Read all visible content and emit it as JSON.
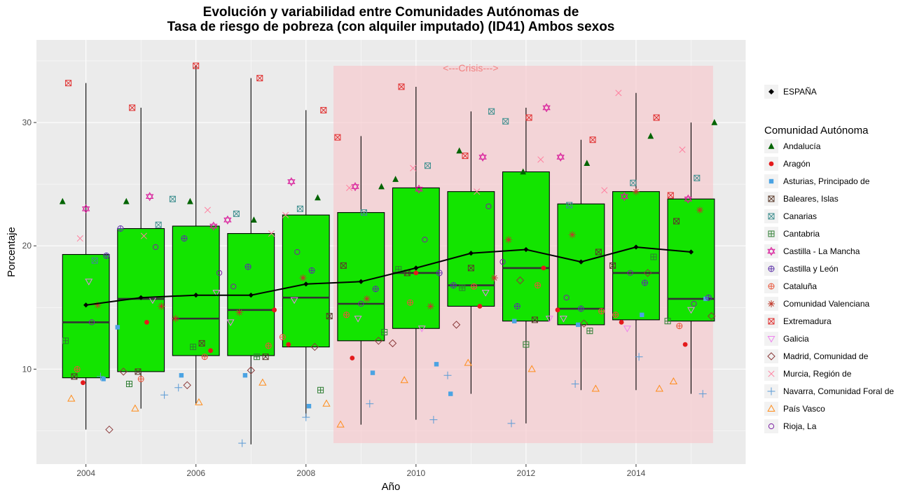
{
  "colors": {
    "panel_bg": "#ebebeb",
    "grid": "#ffffff",
    "box_fill": "#13e400",
    "crisis_fill": "#f8c8cc",
    "crisis_text": "#f08080",
    "espana_line": "#000000"
  },
  "chart_data": {
    "type": "box",
    "title": [
      "Evolución y variabilidad entre Comunidades Autónomas de",
      "Tasa de riesgo de pobreza (con alquiler imputado) (ID41) Ambos sexos"
    ],
    "xlabel": "Año",
    "ylabel": "Porcentaje",
    "xlim": [
      2003.1,
      2016.0
    ],
    "ylim": [
      2.3,
      36.7
    ],
    "x_ticks": [
      2004,
      2006,
      2008,
      2010,
      2012,
      2014
    ],
    "y_ticks": [
      10,
      20,
      30
    ],
    "grid": true,
    "legend_position": "right",
    "annotation": {
      "text": "<---Crisis--->",
      "x_range": [
        2008.5,
        2015.4
      ],
      "y_range": [
        4.0,
        34.6
      ],
      "label_x": 2010.0,
      "label_y": 34.5
    },
    "boxes": [
      {
        "year": 2004,
        "q1": 9.3,
        "median": 13.8,
        "q3": 19.3,
        "whisker_low": 5.1,
        "whisker_high": 33.2
      },
      {
        "year": 2005,
        "q1": 9.8,
        "median": 15.7,
        "q3": 21.4,
        "whisker_low": 6.8,
        "whisker_high": 31.2
      },
      {
        "year": 2006,
        "q1": 11.1,
        "median": 14.1,
        "q3": 21.6,
        "whisker_low": 7.2,
        "whisker_high": 34.6
      },
      {
        "year": 2007,
        "q1": 11.1,
        "median": 14.8,
        "q3": 21.0,
        "whisker_low": 3.9,
        "whisker_high": 33.6
      },
      {
        "year": 2008,
        "q1": 11.8,
        "median": 15.8,
        "q3": 22.5,
        "whisker_low": 6.1,
        "whisker_high": 31.0
      },
      {
        "year": 2009,
        "q1": 12.3,
        "median": 15.3,
        "q3": 22.7,
        "whisker_low": 5.5,
        "whisker_high": 28.9
      },
      {
        "year": 2010,
        "q1": 13.3,
        "median": 17.8,
        "q3": 24.7,
        "whisker_low": 5.9,
        "whisker_high": 32.9
      },
      {
        "year": 2011,
        "q1": 15.1,
        "median": 16.8,
        "q3": 24.4,
        "whisker_low": 8.0,
        "whisker_high": 30.9
      },
      {
        "year": 2012,
        "q1": 13.9,
        "median": 18.2,
        "q3": 26.0,
        "whisker_low": 5.6,
        "whisker_high": 31.2
      },
      {
        "year": 2013,
        "q1": 13.6,
        "median": 14.9,
        "q3": 23.4,
        "whisker_low": 8.3,
        "whisker_high": 28.6
      },
      {
        "year": 2014,
        "q1": 14.0,
        "median": 17.8,
        "q3": 24.4,
        "whisker_low": 8.3,
        "whisker_high": 32.4
      },
      {
        "year": 2015,
        "q1": 13.9,
        "median": 15.7,
        "q3": 23.8,
        "whisker_low": 8.0,
        "whisker_high": 30.0
      }
    ],
    "espana": {
      "name": "ESPAÑA",
      "x": [
        2004,
        2005,
        2006,
        2007,
        2008,
        2009,
        2010,
        2011,
        2012,
        2013,
        2014,
        2015
      ],
      "y": [
        15.2,
        15.8,
        16.0,
        16.0,
        16.9,
        17.1,
        18.2,
        19.4,
        19.7,
        18.7,
        19.9,
        19.5
      ]
    },
    "legend_title": "Comunidad Autónoma",
    "series": [
      {
        "name": "Andalucía",
        "shape": "triangle-filled",
        "color": "#006400",
        "values": [
          23.6,
          23.6,
          23.6,
          22.1,
          23.9,
          24.8,
          25.4,
          27.7,
          26.0,
          26.7,
          28.9,
          30.0
        ]
      },
      {
        "name": "Aragón",
        "shape": "circle-filled",
        "color": "#e41a1c",
        "values": [
          8.9,
          13.8,
          11.5,
          14.8,
          12.0,
          10.9,
          17.8,
          15.1,
          18.2,
          14.8,
          13.8,
          12.0
        ]
      },
      {
        "name": "Asturias, Principado de",
        "shape": "square-filled",
        "color": "#4ba3e3",
        "values": [
          9.2,
          13.4,
          9.5,
          9.5,
          7.0,
          9.7,
          10.4,
          8.0,
          13.9,
          13.6,
          14.4,
          15.7
        ]
      },
      {
        "name": "Baleares, Islas",
        "shape": "square-x",
        "color": "#5a3a2a",
        "values": [
          9.4,
          9.8,
          12.1,
          11.0,
          14.3,
          18.4,
          17.8,
          18.2,
          14.0,
          19.5,
          18.4,
          22.0
        ]
      },
      {
        "name": "Canarias",
        "shape": "square-x",
        "color": "#3f8f8f",
        "values": [
          18.8,
          21.7,
          23.8,
          22.6,
          23.0,
          22.7,
          26.5,
          30.9,
          30.1,
          23.3,
          25.1,
          25.5
        ]
      },
      {
        "name": "Cantabria",
        "shape": "square-plus",
        "color": "#2e7d32",
        "values": [
          12.3,
          8.8,
          11.8,
          11.0,
          8.3,
          13.0,
          18.1,
          16.6,
          12.0,
          13.1,
          19.1,
          13.9
        ]
      },
      {
        "name": "Castilla - La Mancha",
        "shape": "star-david",
        "color": "#d81b9a",
        "values": [
          23.0,
          24.0,
          21.6,
          22.1,
          25.2,
          24.8,
          24.6,
          27.2,
          31.2,
          27.2,
          24.0,
          23.8
        ]
      },
      {
        "name": "Castilla y León",
        "shape": "circle-plus",
        "color": "#5b2fa8",
        "values": [
          19.2,
          21.4,
          20.6,
          18.3,
          18.0,
          16.5,
          17.8,
          16.8,
          15.1,
          14.9,
          17.0,
          15.8
        ]
      },
      {
        "name": "Cataluña",
        "shape": "circle-plus",
        "color": "#e8553a",
        "values": [
          10.0,
          9.2,
          11.0,
          11.9,
          12.6,
          14.4,
          15.4,
          16.7,
          16.8,
          14.7,
          14.4,
          13.5
        ]
      },
      {
        "name": "Comunidad Valenciana",
        "shape": "asterisk",
        "color": "#c0392b",
        "values": [
          15.2,
          15.1,
          14.1,
          14.6,
          17.4,
          15.7,
          15.1,
          17.4,
          20.5,
          20.9,
          24.4,
          22.9
        ]
      },
      {
        "name": "Extremadura",
        "shape": "square-x",
        "color": "#e03030",
        "values": [
          33.2,
          31.2,
          34.6,
          33.6,
          31.0,
          28.8,
          32.9,
          27.3,
          30.4,
          28.6,
          30.4,
          24.1
        ]
      },
      {
        "name": "Galicia",
        "shape": "triangle-down",
        "color": "#ee82ee",
        "values": [
          17.1,
          15.6,
          16.2,
          13.8,
          15.6,
          14.1,
          13.3,
          16.2,
          14.1,
          14.1,
          13.3,
          14.8
        ]
      },
      {
        "name": "Madrid, Comunidad de",
        "shape": "diamond",
        "color": "#8b3a3a",
        "values": [
          5.1,
          9.8,
          8.7,
          9.9,
          11.8,
          12.3,
          12.1,
          13.6,
          17.2,
          13.7,
          17.8,
          14.3
        ]
      },
      {
        "name": "Murcia, Región de",
        "shape": "cross-x",
        "color": "#ff7f9f",
        "values": [
          20.6,
          20.8,
          22.9,
          21.0,
          22.5,
          24.7,
          26.3,
          24.4,
          27.0,
          24.5,
          32.4,
          27.8
        ]
      },
      {
        "name": "Navarra, Comunidad Foral de",
        "shape": "plus",
        "color": "#5b9bd5",
        "values": [
          9.4,
          7.9,
          8.5,
          4.0,
          6.1,
          7.2,
          5.9,
          9.5,
          5.6,
          8.8,
          11.0,
          8.0
        ]
      },
      {
        "name": "País Vasco",
        "shape": "triangle-open",
        "color": "#ff8c1a",
        "values": [
          7.6,
          6.8,
          7.3,
          8.9,
          7.2,
          5.5,
          9.1,
          10.5,
          10.0,
          8.4,
          8.4,
          9.0
        ]
      },
      {
        "name": "Rioja, La",
        "shape": "circle-open",
        "color": "#7b1fa2",
        "values": [
          13.8,
          19.9,
          17.8,
          16.7,
          19.5,
          15.3,
          20.5,
          23.2,
          18.7,
          15.8,
          17.8,
          15.3
        ]
      }
    ]
  }
}
